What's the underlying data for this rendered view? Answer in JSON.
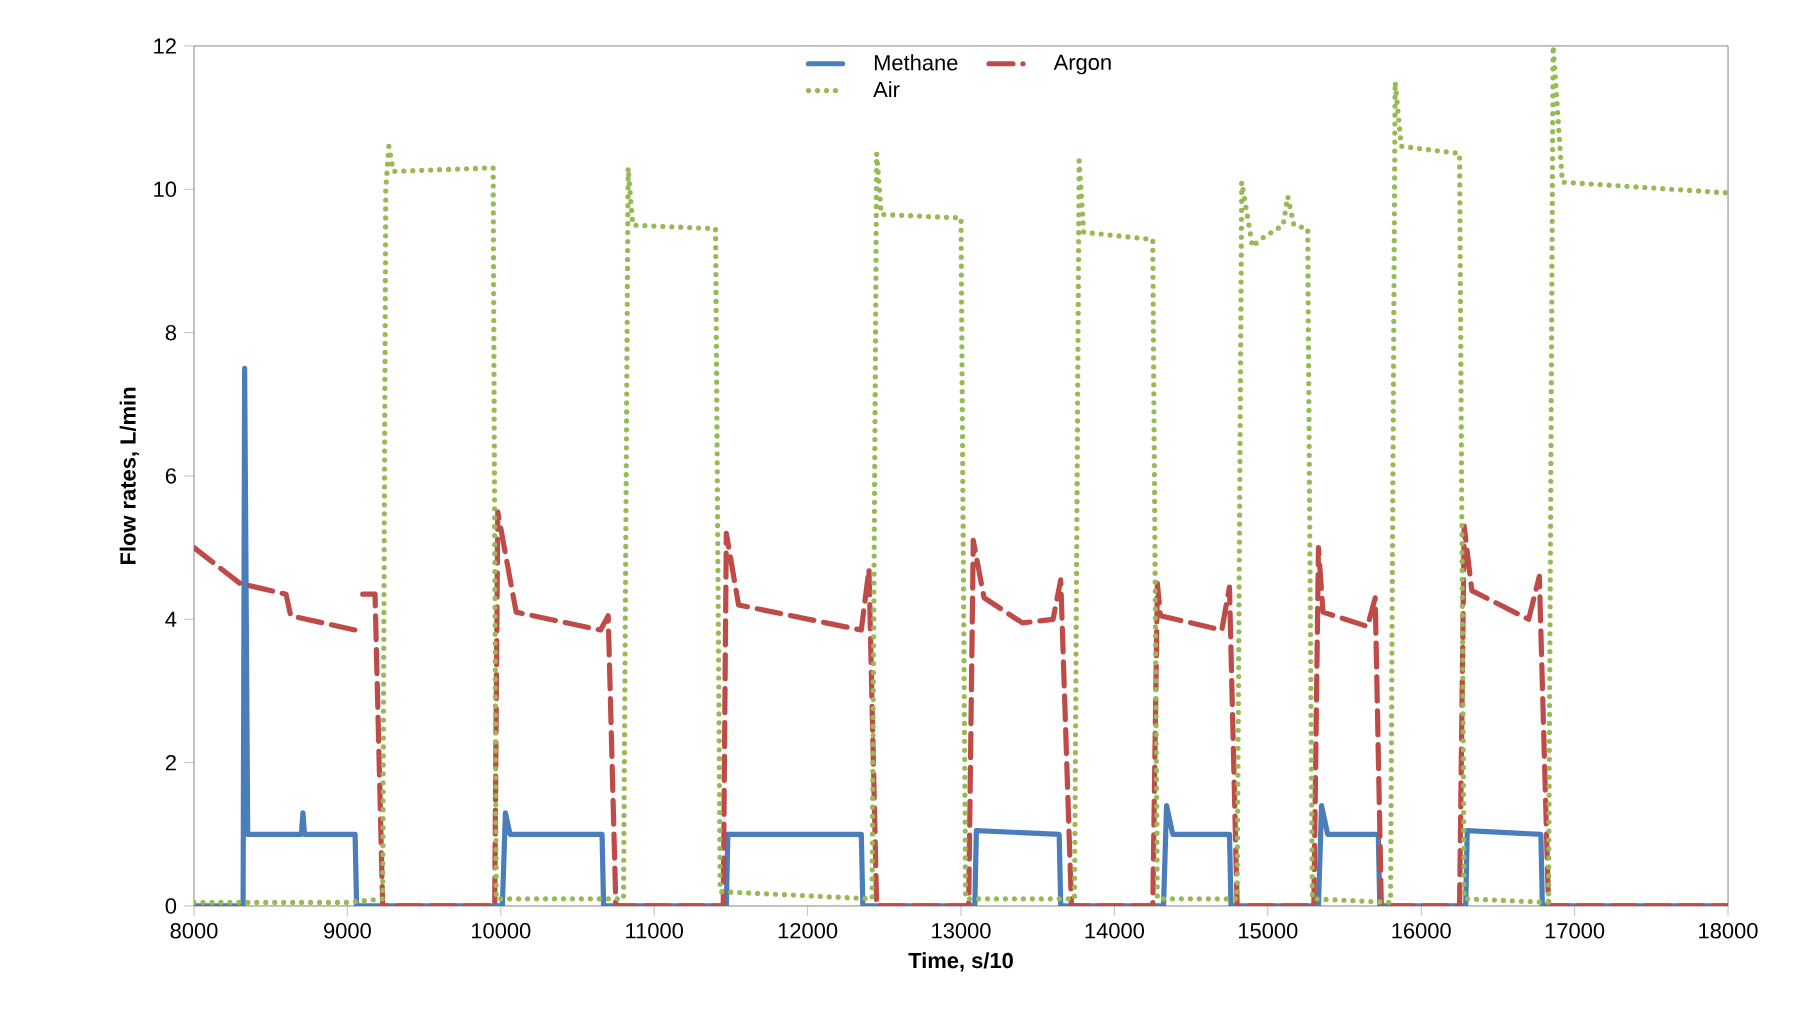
{
  "chart_data": {
    "type": "line",
    "xlabel": "Time, s/10",
    "ylabel": "Flow rates, L/min",
    "xlim": [
      8000,
      18000
    ],
    "xticks": [
      8000,
      9000,
      10000,
      11000,
      12000,
      13000,
      14000,
      15000,
      16000,
      17000,
      18000
    ],
    "ylim": [
      0,
      12
    ],
    "yticks": [
      0,
      2,
      4,
      6,
      8,
      10,
      12
    ],
    "grid": false,
    "legend": "top",
    "marker": "none",
    "series": [
      {
        "name": "Methane",
        "color": "#4a7ebb",
        "line_style": "solid",
        "x": [
          8000,
          8320,
          8330,
          8350,
          8700,
          8710,
          8720,
          9050,
          9060,
          10010,
          10030,
          10060,
          10660,
          10670,
          11470,
          11480,
          12350,
          12360,
          13090,
          13100,
          13640,
          13650,
          14320,
          14340,
          14380,
          14750,
          14760,
          15330,
          15350,
          15390,
          15720,
          15730,
          16290,
          16300,
          16780,
          16790,
          18000
        ],
        "values": [
          0,
          0,
          7.5,
          1.0,
          1.0,
          1.3,
          1.0,
          1.0,
          0,
          0,
          1.3,
          1.0,
          1.0,
          0,
          0,
          1.0,
          1.0,
          0,
          0,
          1.05,
          1.0,
          0,
          0,
          1.4,
          1.0,
          1.0,
          0,
          0,
          1.4,
          1.0,
          1.0,
          0,
          0,
          1.05,
          1.0,
          0,
          0
        ]
      },
      {
        "name": "Argon",
        "color": "#be4b48",
        "line_style": "dashed",
        "x": [
          8000,
          8300,
          8600,
          8630,
          9050,
          9075,
          9100,
          9180,
          9230,
          9960,
          9980,
          10100,
          10650,
          10700,
          10750,
          11450,
          11470,
          11550,
          12350,
          12400,
          12450,
          13050,
          13080,
          13150,
          13400,
          13600,
          13650,
          13720,
          14250,
          14280,
          14300,
          14700,
          14750,
          14800,
          15300,
          15330,
          15360,
          15650,
          15700,
          15740,
          16250,
          16280,
          16330,
          16700,
          16770,
          16830,
          18000
        ],
        "values": [
          5.0,
          4.5,
          4.35,
          4.05,
          3.85,
          null,
          4.35,
          4.35,
          0,
          0,
          5.5,
          4.1,
          3.85,
          4.05,
          0,
          0,
          5.2,
          4.2,
          3.85,
          4.7,
          0,
          0,
          5.1,
          4.3,
          3.95,
          4.0,
          4.55,
          0,
          0,
          4.5,
          4.05,
          3.85,
          4.45,
          0,
          0,
          5.0,
          4.1,
          3.9,
          4.3,
          0,
          0,
          5.3,
          4.4,
          4.0,
          4.6,
          0,
          0
        ]
      },
      {
        "name": "Air",
        "color": "#98b954",
        "line_style": "dotted",
        "x": [
          8000,
          9000,
          9230,
          9250,
          9270,
          9300,
          9950,
          9970,
          10800,
          10830,
          10860,
          11400,
          11430,
          12420,
          12450,
          12480,
          13000,
          13030,
          13740,
          13770,
          13800,
          14250,
          14280,
          14800,
          14830,
          14900,
          14950,
          15100,
          15130,
          15170,
          15260,
          15290,
          15800,
          15830,
          15870,
          16250,
          16280,
          16830,
          16860,
          16920,
          18000
        ],
        "values": [
          0.05,
          0.05,
          0.1,
          10,
          10.6,
          10.25,
          10.3,
          0.1,
          0.1,
          10.3,
          9.5,
          9.45,
          0.2,
          0.1,
          10.5,
          9.65,
          9.6,
          0.1,
          0.1,
          10.4,
          9.4,
          9.3,
          0.1,
          0.1,
          10.1,
          9.2,
          9.3,
          9.5,
          9.9,
          9.5,
          9.45,
          0.1,
          0.05,
          11.5,
          10.6,
          10.5,
          0.1,
          0.05,
          12,
          10.1,
          9.95
        ]
      }
    ]
  }
}
